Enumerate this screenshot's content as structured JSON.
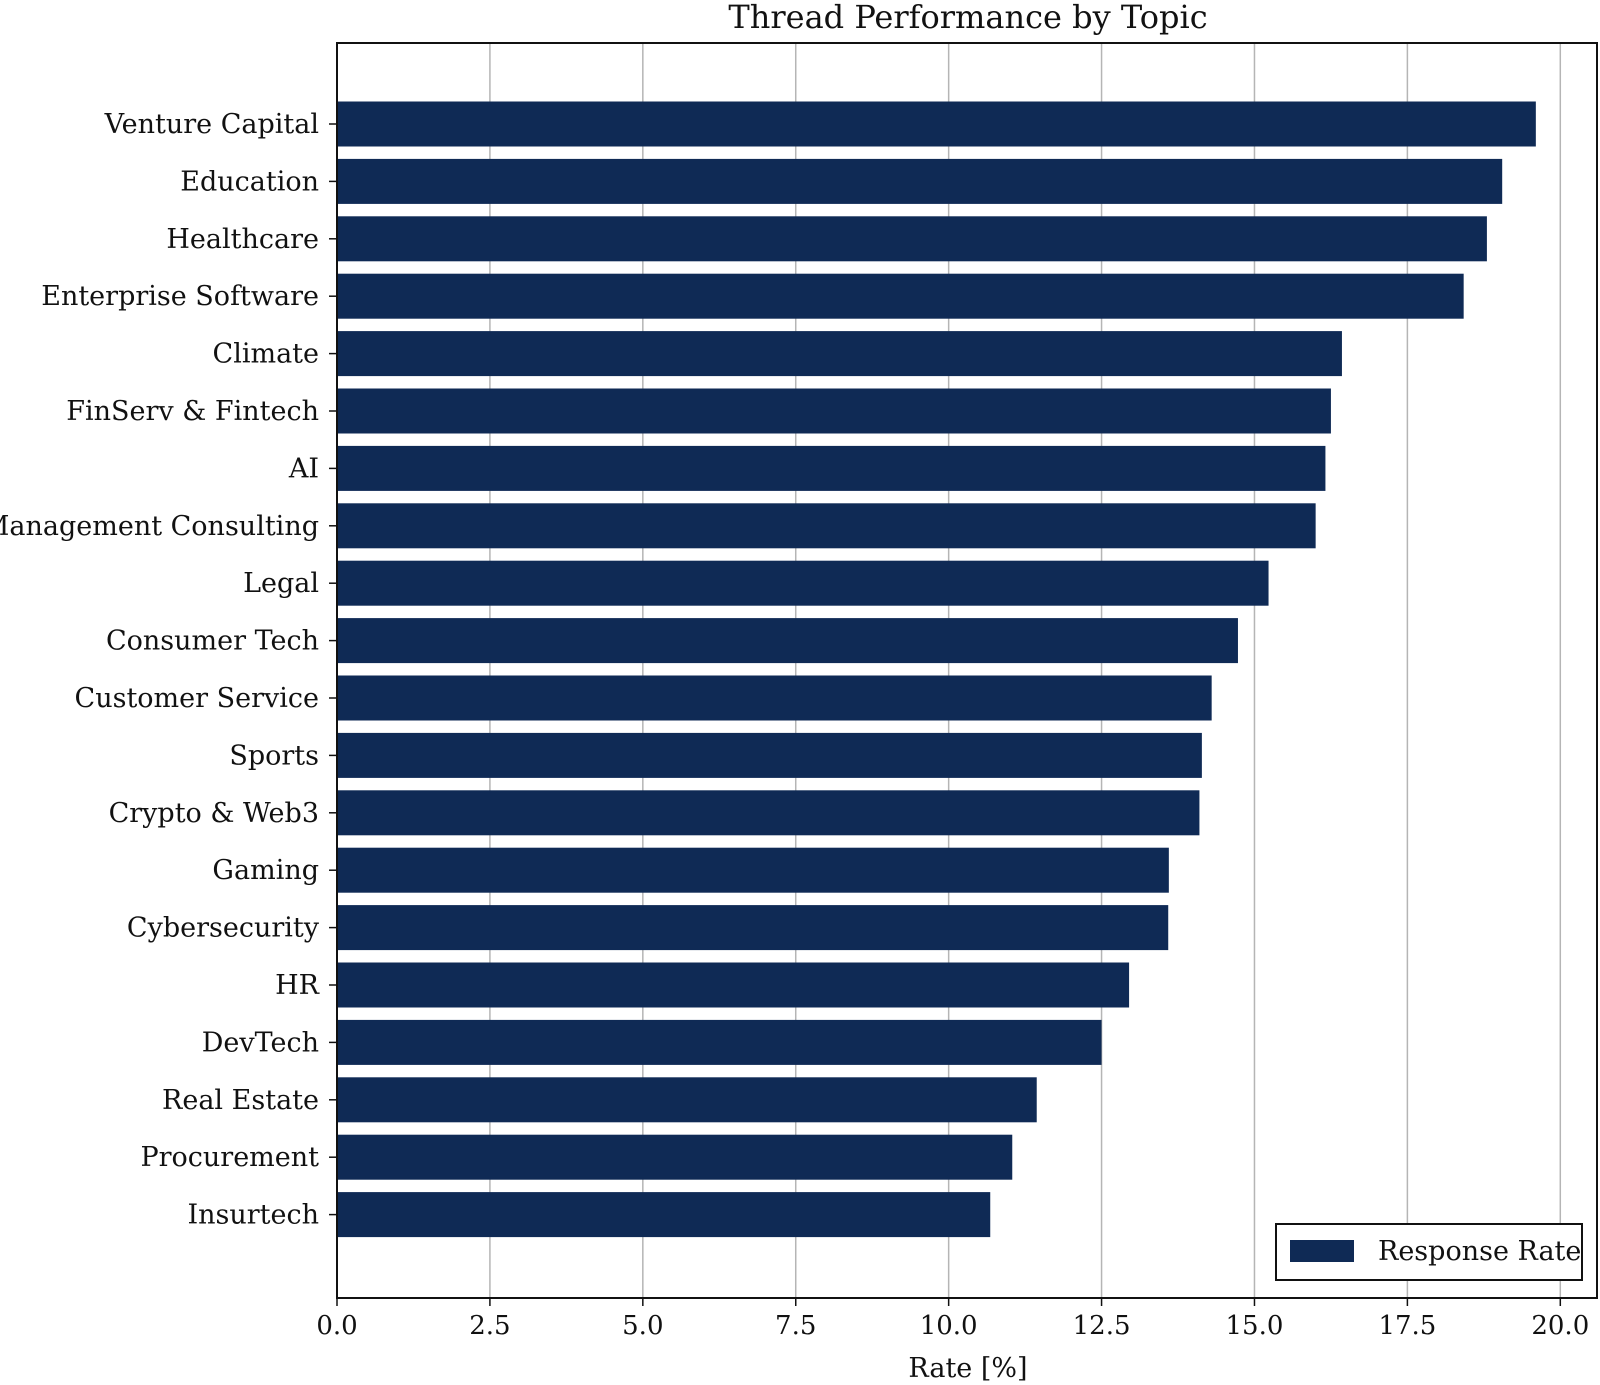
{
  "chart_data": {
    "type": "bar",
    "orientation": "horizontal",
    "title": "Thread Performance by Topic",
    "xlabel": "Rate [%]",
    "ylabel": "",
    "xlim": [
      0,
      20.6
    ],
    "xticks": [
      "0.0",
      "2.5",
      "5.0",
      "7.5",
      "10.0",
      "12.5",
      "15.0",
      "17.5",
      "20.0"
    ],
    "grid": "vertical",
    "legend_position": "bottom-right",
    "bar_color": "#0f2a55",
    "categories": [
      "Venture Capital",
      "Education",
      "Healthcare",
      "Enterprise Software",
      "Climate",
      "FinServ & Fintech",
      "AI",
      "Management Consulting",
      "Legal",
      "Consumer Tech",
      "Customer Service",
      "Sports",
      "Crypto & Web3",
      "Gaming",
      "Cybersecurity",
      "HR",
      "DevTech",
      "Real Estate",
      "Procurement",
      "Insurtech"
    ],
    "series": [
      {
        "name": "Response Rate",
        "values": [
          19.6,
          19.05,
          18.8,
          18.42,
          16.43,
          16.25,
          16.16,
          16.0,
          15.23,
          14.73,
          14.3,
          14.14,
          14.1,
          13.6,
          13.59,
          12.95,
          12.5,
          11.44,
          11.04,
          10.68
        ]
      }
    ]
  }
}
